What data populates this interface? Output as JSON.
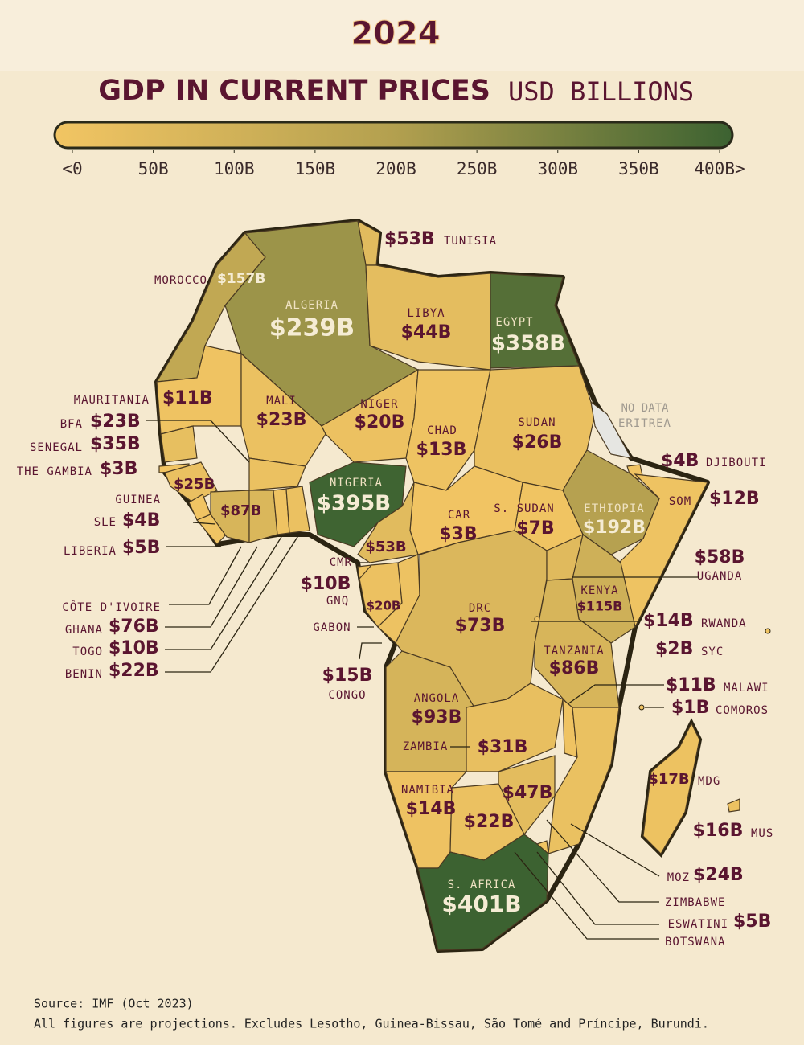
{
  "title": "2024",
  "heading": "GDP IN CURRENT PRICES",
  "unit": "USD BILLIONS",
  "colorbar": {
    "colors": [
      "#f2c563",
      "#b3a04f",
      "#3c6231"
    ],
    "ticks": [
      {
        "value": 0,
        "label": "<0"
      },
      {
        "value": 50,
        "label": "50B"
      },
      {
        "value": 100,
        "label": "100B"
      },
      {
        "value": 150,
        "label": "150B"
      },
      {
        "value": 200,
        "label": "200B"
      },
      {
        "value": 250,
        "label": "250B"
      },
      {
        "value": 300,
        "label": "300B"
      },
      {
        "value": 350,
        "label": "350B"
      },
      {
        "value": 400,
        "label": "400B>"
      }
    ]
  },
  "countries": [
    {
      "name": "TUNISIA",
      "label": "$53B",
      "value": 53
    },
    {
      "name": "MOROCCO",
      "label": "$157B",
      "value": 157
    },
    {
      "name": "ALGERIA",
      "label": "$239B",
      "value": 239
    },
    {
      "name": "LIBYA",
      "label": "$44B",
      "value": 44
    },
    {
      "name": "EGYPT",
      "label": "$358B",
      "value": 358
    },
    {
      "name": "MAURITANIA",
      "label": "$11B",
      "value": 11
    },
    {
      "name": "MALI",
      "label": "$23B",
      "value": 23
    },
    {
      "name": "NIGER",
      "label": "$20B",
      "value": 20
    },
    {
      "name": "CHAD",
      "label": "$13B",
      "value": 13
    },
    {
      "name": "SUDAN",
      "label": "$26B",
      "value": 26
    },
    {
      "name": "ERITREA",
      "label": "NO DATA",
      "value": null
    },
    {
      "name": "DJIBOUTI",
      "label": "$4B",
      "value": 4
    },
    {
      "name": "SOM",
      "label": "$12B",
      "value": 12
    },
    {
      "name": "ETHIOPIA",
      "label": "$192B",
      "value": 192
    },
    {
      "name": "S. SUDAN",
      "label": "$7B",
      "value": 7
    },
    {
      "name": "CAR",
      "label": "$3B",
      "value": 3
    },
    {
      "name": "NIGERIA",
      "label": "$395B",
      "value": 395
    },
    {
      "name": "BFA",
      "label": "$23B",
      "value": 23
    },
    {
      "name": "SENEGAL",
      "label": "$35B",
      "value": 35
    },
    {
      "name": "THE GAMBIA",
      "label": "$3B",
      "value": 3
    },
    {
      "name": "GUINEA",
      "label": "$25B",
      "value": 25
    },
    {
      "name": "SLE",
      "label": "$4B",
      "value": 4
    },
    {
      "name": "LIBERIA",
      "label": "$5B",
      "value": 5
    },
    {
      "name": "CÔTE D'IVOIRE",
      "label": "$87B",
      "value": 87
    },
    {
      "name": "GHANA",
      "label": "$76B",
      "value": 76
    },
    {
      "name": "TOGO",
      "label": "$10B",
      "value": 10
    },
    {
      "name": "BENIN",
      "label": "$22B",
      "value": 22
    },
    {
      "name": "CMR",
      "label": "$53B",
      "value": 53
    },
    {
      "name": "GNQ",
      "label": "$10B",
      "value": 10
    },
    {
      "name": "GABON",
      "label": "$20B",
      "value": 20
    },
    {
      "name": "CONGO",
      "label": "$15B",
      "value": 15
    },
    {
      "name": "DRC",
      "label": "$73B",
      "value": 73
    },
    {
      "name": "UGANDA",
      "label": "$58B",
      "value": 58
    },
    {
      "name": "KENYA",
      "label": "$115B",
      "value": 115
    },
    {
      "name": "RWANDA",
      "label": "$14B",
      "value": 14
    },
    {
      "name": "SYC",
      "label": "$2B",
      "value": 2
    },
    {
      "name": "TANZANIA",
      "label": "$86B",
      "value": 86
    },
    {
      "name": "MALAWI",
      "label": "$11B",
      "value": 11
    },
    {
      "name": "COMOROS",
      "label": "$1B",
      "value": 1
    },
    {
      "name": "ANGOLA",
      "label": "$93B",
      "value": 93
    },
    {
      "name": "ZAMBIA",
      "label": "$31B",
      "value": 31
    },
    {
      "name": "NAMIBIA",
      "label": "$14B",
      "value": 14
    },
    {
      "name": "ZIMBABWE",
      "label": "$47B",
      "value": 47
    },
    {
      "name": "BOTSWANA",
      "label": "$22B",
      "value": 22
    },
    {
      "name": "MDG",
      "label": "$17B",
      "value": 17
    },
    {
      "name": "MUS",
      "label": "$16B",
      "value": 16
    },
    {
      "name": "MOZ",
      "label": "$24B",
      "value": 24
    },
    {
      "name": "ESWATINI",
      "label": "$5B",
      "value": 5
    },
    {
      "name": "S. AFRICA",
      "label": "$401B",
      "value": 401
    }
  ],
  "source": "Source: IMF (Oct 2023)",
  "note": "All figures are projections. Excludes Lesotho, Guinea-Bissau, São Tomé and Príncipe, Burundi."
}
